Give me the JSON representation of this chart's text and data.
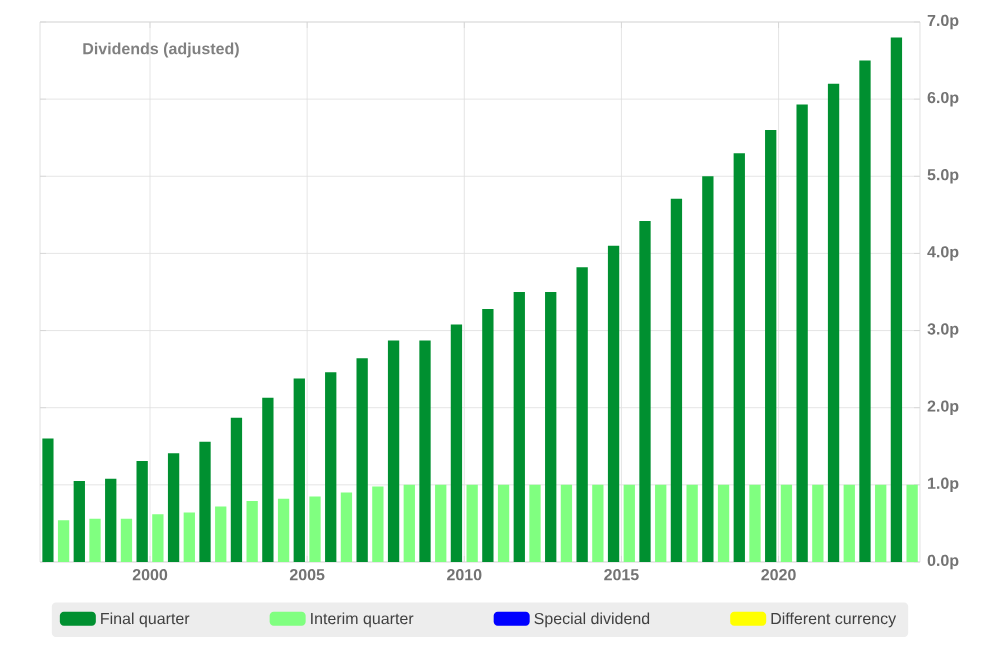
{
  "chart_data": {
    "type": "bar",
    "title": "Dividends (adjusted)",
    "series": [
      {
        "name": "Final quarter",
        "color": "#009030",
        "x": [
          1996.75,
          1997.75,
          1998.75,
          1999.75,
          2000.75,
          2001.75,
          2002.75,
          2003.75,
          2004.75,
          2005.75,
          2006.75,
          2007.75,
          2008.75,
          2009.75,
          2010.75,
          2011.75,
          2012.75,
          2013.75,
          2014.75,
          2015.75,
          2016.75,
          2017.75,
          2018.75,
          2019.75,
          2020.75,
          2021.75,
          2022.75,
          2023.75
        ],
        "values": [
          1.6,
          1.05,
          1.08,
          1.31,
          1.41,
          1.56,
          1.87,
          2.13,
          2.38,
          2.46,
          2.64,
          2.87,
          2.87,
          3.08,
          3.28,
          3.5,
          3.5,
          3.82,
          4.1,
          4.42,
          4.71,
          5.0,
          5.3,
          5.6,
          5.93,
          6.2,
          6.5,
          6.8
        ]
      },
      {
        "name": "Interim quarter",
        "color": "#80ff80",
        "x": [
          1997.25,
          1998.25,
          1999.25,
          2000.25,
          2001.25,
          2002.25,
          2003.25,
          2004.25,
          2005.25,
          2006.25,
          2007.25,
          2008.25,
          2009.25,
          2010.25,
          2011.25,
          2012.25,
          2013.25,
          2014.25,
          2015.25,
          2016.25,
          2017.25,
          2018.25,
          2019.25,
          2020.25,
          2021.25,
          2022.25,
          2023.25,
          2024.25
        ],
        "values": [
          0.54,
          0.56,
          0.56,
          0.62,
          0.64,
          0.72,
          0.79,
          0.82,
          0.85,
          0.9,
          0.98,
          1.0,
          1.0,
          1.0,
          1.0,
          1.0,
          1.0,
          1.0,
          1.0,
          1.0,
          1.0,
          1.0,
          1.0,
          1.0,
          1.0,
          1.0,
          1.0,
          1.0
        ]
      },
      {
        "name": "Special dividend",
        "color": "#0000ff"
      },
      {
        "name": "Different currency",
        "color": "#ffff00"
      }
    ],
    "xlim": [
      1996.5,
      2024.5
    ],
    "xticks": [
      2000,
      2005,
      2010,
      2015,
      2020
    ],
    "ylim": [
      0,
      7
    ],
    "yticks": [
      {
        "value": 0,
        "label": "0.0p"
      },
      {
        "value": 1,
        "label": "1.0p"
      },
      {
        "value": 2,
        "label": "2.0p"
      },
      {
        "value": 3,
        "label": "3.0p"
      },
      {
        "value": 4,
        "label": "4.0p"
      },
      {
        "value": 5,
        "label": "5.0p"
      },
      {
        "value": 6,
        "label": "6.0p"
      },
      {
        "value": 7,
        "label": "7.0p"
      }
    ],
    "grid": true,
    "legend": "bottom"
  }
}
